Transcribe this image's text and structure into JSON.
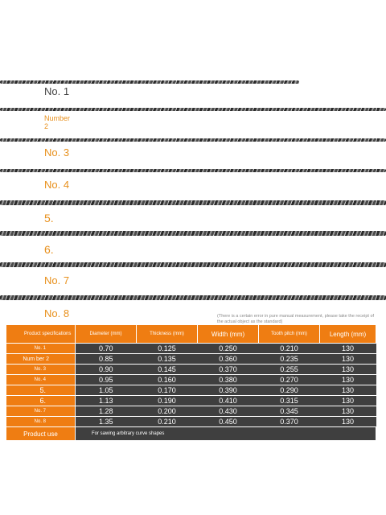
{
  "blades": [
    {
      "label": "No. 1",
      "style": "dark"
    },
    {
      "label": "Number\n2",
      "style": "orange-small"
    },
    {
      "label": "No. 3",
      "style": "orange"
    },
    {
      "label": "No. 4",
      "style": "orange"
    },
    {
      "label": "5.",
      "style": "orange"
    },
    {
      "label": "6.",
      "style": "orange"
    },
    {
      "label": "No. 7",
      "style": "orange"
    },
    {
      "label": "No. 8",
      "style": "orange"
    }
  ],
  "note": "(There is a certain error in pure manual measurement, please take the receipt of the actual object as the standard)",
  "table": {
    "headers": {
      "spec": "Product specifications",
      "diameter": "Diameter (mm)",
      "thickness": "Thickness (mm)",
      "width": "Width (mm)",
      "tooth_pitch": "Tooth pitch (mm)",
      "length": "Length (mm)"
    },
    "rows": [
      {
        "name": "No. 1",
        "diameter": "0.70",
        "thickness": "0.125",
        "width": "0.250",
        "tooth_pitch": "0.210",
        "length": "130"
      },
      {
        "name": "Num ber 2",
        "diameter": "0.85",
        "thickness": "0.135",
        "width": "0.360",
        "tooth_pitch": "0.235",
        "length": "130"
      },
      {
        "name": "No. 3",
        "diameter": "0.90",
        "thickness": "0.145",
        "width": "0.370",
        "tooth_pitch": "0.255",
        "length": "130"
      },
      {
        "name": "No. 4",
        "diameter": "0.95",
        "thickness": "0.160",
        "width": "0.380",
        "tooth_pitch": "0.270",
        "length": "130"
      },
      {
        "name": "5.",
        "diameter": "1.05",
        "thickness": "0.170",
        "width": "0.390",
        "tooth_pitch": "0.290",
        "length": "130"
      },
      {
        "name": "6.",
        "diameter": "1.13",
        "thickness": "0.190",
        "width": "0.410",
        "tooth_pitch": "0.315",
        "length": "130"
      },
      {
        "name": "No. 7",
        "diameter": "1.28",
        "thickness": "0.200",
        "width": "0.430",
        "tooth_pitch": "0.345",
        "length": "130"
      },
      {
        "name": "No. 8",
        "diameter": "1.35",
        "thickness": "0.210",
        "width": "0.450",
        "tooth_pitch": "0.370",
        "length": "130"
      }
    ],
    "product_use_label": "Product use",
    "product_use_value": "For sawing arbitrary curve shapes"
  },
  "colors": {
    "accent": "#ef7d12",
    "dark_cell": "#3f3f3f",
    "label_orange": "#e8901c"
  }
}
